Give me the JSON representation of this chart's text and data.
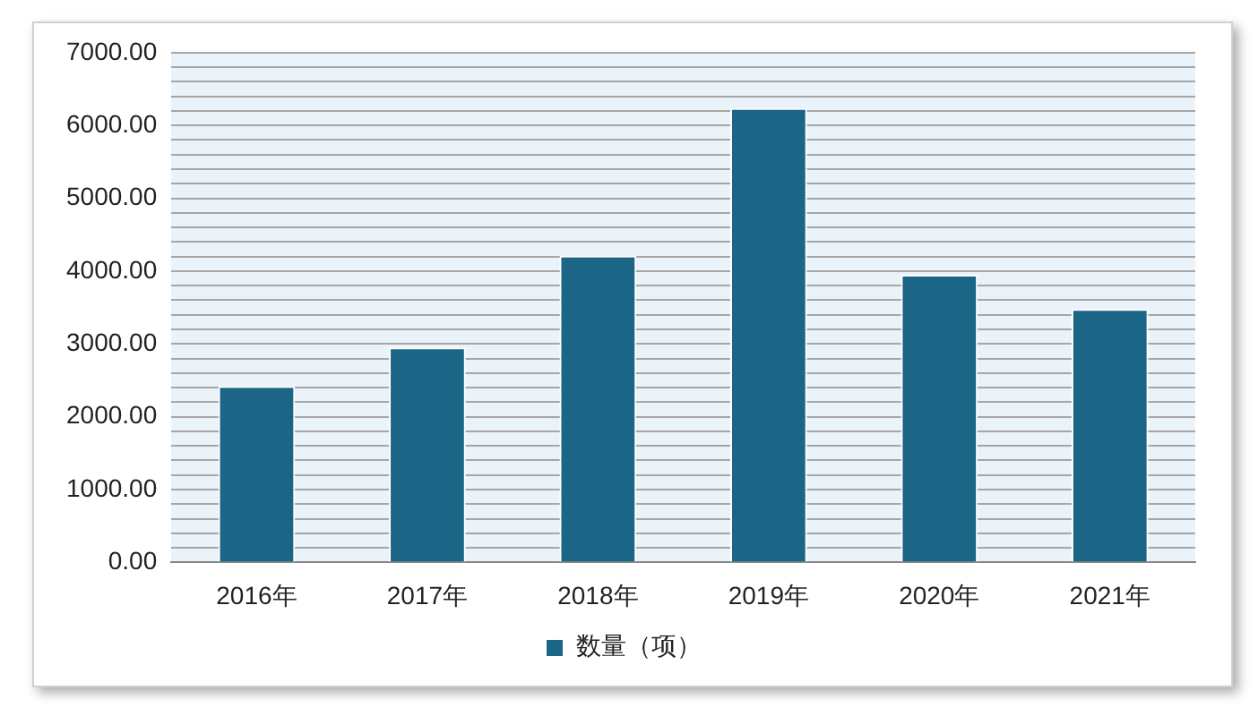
{
  "chart_data": {
    "type": "bar",
    "categories": [
      "2016年",
      "2017年",
      "2018年",
      "2019年",
      "2020年",
      "2021年"
    ],
    "series": [
      {
        "name": "数量（项）",
        "color": "#1b6587",
        "values": [
          2420,
          2950,
          4210,
          6240,
          3950,
          3480
        ]
      }
    ],
    "ylim": [
      0,
      7000
    ],
    "yticks": [
      {
        "value": 0,
        "label": "0.00"
      },
      {
        "value": 200,
        "label": null
      },
      {
        "value": 400,
        "label": null
      },
      {
        "value": 600,
        "label": null
      },
      {
        "value": 800,
        "label": null
      },
      {
        "value": 1000,
        "label": "1000.00"
      },
      {
        "value": 1200,
        "label": null
      },
      {
        "value": 1400,
        "label": null
      },
      {
        "value": 1600,
        "label": null
      },
      {
        "value": 1800,
        "label": null
      },
      {
        "value": 2000,
        "label": "2000.00"
      },
      {
        "value": 2200,
        "label": null
      },
      {
        "value": 2400,
        "label": null
      },
      {
        "value": 2600,
        "label": null
      },
      {
        "value": 2800,
        "label": null
      },
      {
        "value": 3000,
        "label": "3000.00"
      },
      {
        "value": 3200,
        "label": null
      },
      {
        "value": 3400,
        "label": null
      },
      {
        "value": 3600,
        "label": null
      },
      {
        "value": 3800,
        "label": null
      },
      {
        "value": 4000,
        "label": "4000.00"
      },
      {
        "value": 4200,
        "label": null
      },
      {
        "value": 4400,
        "label": null
      },
      {
        "value": 4600,
        "label": null
      },
      {
        "value": 4800,
        "label": null
      },
      {
        "value": 5000,
        "label": "5000.00"
      },
      {
        "value": 5200,
        "label": null
      },
      {
        "value": 5400,
        "label": null
      },
      {
        "value": 5600,
        "label": null
      },
      {
        "value": 5800,
        "label": null
      },
      {
        "value": 6000,
        "label": "6000.00"
      },
      {
        "value": 6200,
        "label": null
      },
      {
        "value": 6400,
        "label": null
      },
      {
        "value": 6600,
        "label": null
      },
      {
        "value": 6800,
        "label": null
      },
      {
        "value": 7000,
        "label": "7000.00"
      }
    ],
    "grid": "y",
    "legend": "bottom"
  }
}
